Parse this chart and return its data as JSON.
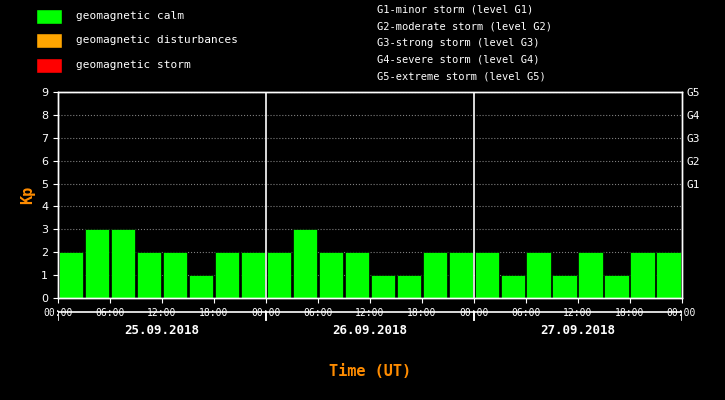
{
  "background_color": "#000000",
  "plot_bg_color": "#000000",
  "bar_color": "#00FF00",
  "bar_edge_color": "#000000",
  "text_color": "#FFFFFF",
  "kp_label_color": "#FF8C00",
  "xlabel_color": "#FF8C00",
  "grid_color": "#FFFFFF",
  "day_divider_color": "#FFFFFF",
  "days": [
    "25.09.2018",
    "26.09.2018",
    "27.09.2018"
  ],
  "kp_values": [
    [
      2,
      3,
      3,
      2,
      2,
      1,
      2,
      2
    ],
    [
      2,
      3,
      2,
      2,
      1,
      1,
      2,
      2
    ],
    [
      2,
      1,
      2,
      1,
      2,
      1,
      2,
      2
    ]
  ],
  "ylim": [
    0,
    9
  ],
  "yticks": [
    0,
    1,
    2,
    3,
    4,
    5,
    6,
    7,
    8,
    9
  ],
  "g_labels": [
    "G1",
    "G2",
    "G3",
    "G4",
    "G5"
  ],
  "g_levels": [
    5,
    6,
    7,
    8,
    9
  ],
  "xtick_labels": [
    "00:00",
    "06:00",
    "12:00",
    "18:00",
    "00:00",
    "06:00",
    "12:00",
    "18:00",
    "00:00",
    "06:00",
    "12:00",
    "18:00",
    "00:00"
  ],
  "legend_items": [
    {
      "label": "geomagnetic calm",
      "color": "#00FF00"
    },
    {
      "label": "geomagnetic disturbances",
      "color": "#FFA500"
    },
    {
      "label": "geomagnetic storm",
      "color": "#FF0000"
    }
  ],
  "legend_right_text": [
    "G1-minor storm (level G1)",
    "G2-moderate storm (level G2)",
    "G3-strong storm (level G3)",
    "G4-severe storm (level G4)",
    "G5-extreme storm (level G5)"
  ],
  "xlabel": "Time (UT)",
  "ylabel": "Kp",
  "font_family": "monospace"
}
